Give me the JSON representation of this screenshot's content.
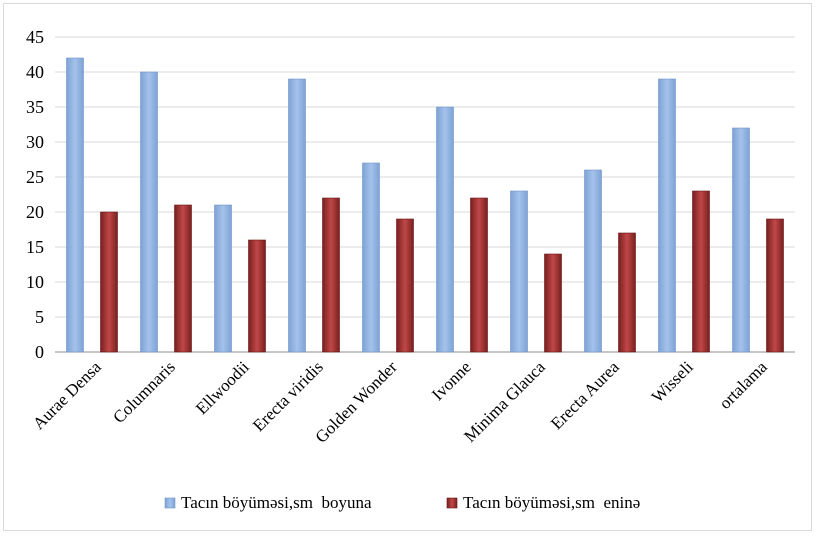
{
  "chart_data": {
    "type": "bar",
    "categories": [
      "Aurae Densa",
      "Columnaris",
      "Ellwoodii",
      "Erecta viridis",
      "Golden Wonder",
      "Ivonne",
      "Minima Glauca",
      "Erecta Aurea",
      "Wisseli",
      "ortalama"
    ],
    "series": [
      {
        "name": "Tacın böyüməsi,sm  boyuna",
        "color": "#8db3e2",
        "values": [
          42,
          40,
          21,
          39,
          27,
          35,
          23,
          26,
          39,
          32
        ]
      },
      {
        "name": "Tacın böyüməsi,sm  eninə",
        "color": "#9e2a2a",
        "values": [
          20,
          21,
          16,
          22,
          19,
          22,
          14,
          17,
          23,
          19
        ]
      }
    ],
    "ylim": [
      0,
      45
    ],
    "yticks": [
      0,
      5,
      10,
      15,
      20,
      25,
      30,
      35,
      40,
      45
    ],
    "grid": true,
    "legend": "bottom",
    "title": "",
    "xlabel": "",
    "ylabel": ""
  }
}
